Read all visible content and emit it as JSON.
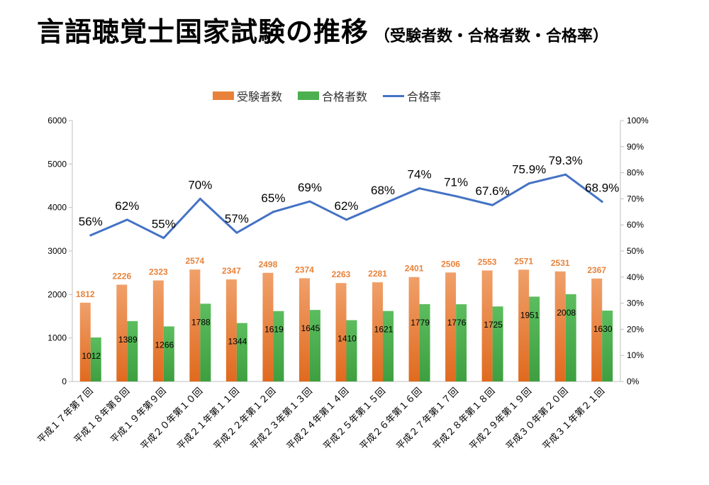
{
  "title": {
    "main": "言語聴覚士国家試験の推移",
    "sub": "（受験者数・合格者数・合格率）"
  },
  "colors": {
    "examinees": "#E8823A",
    "passers": "#4CAF50",
    "rate": "#4472C4",
    "axis": "#BFBFBF"
  },
  "chart_data": {
    "type": "bar",
    "title": "言語聴覚士国家試験の推移（受験者数・合格者数・合格率）",
    "categories": [
      "平成１７年第７回",
      "平成１８年第８回",
      "平成１９年第９回",
      "平成２０年第１０回",
      "平成２１年第１１回",
      "平成２２年第１２回",
      "平成２３年第１３回",
      "平成２４年第１４回",
      "平成２５年第１５回",
      "平成２６年第１６回",
      "平成２７年第１７回",
      "平成２８年第１８回",
      "平成２９年第１９回",
      "平成３０年第２０回",
      "平成３１年第２１回"
    ],
    "series": [
      {
        "name": "受験者数",
        "type": "bar",
        "values": [
          1812,
          2226,
          2323,
          2574,
          2347,
          2498,
          2374,
          2263,
          2281,
          2401,
          2506,
          2553,
          2571,
          2531,
          2367
        ]
      },
      {
        "name": "合格者数",
        "type": "bar",
        "values": [
          1012,
          1389,
          1266,
          1788,
          1344,
          1619,
          1645,
          1410,
          1621,
          1779,
          1776,
          1725,
          1951,
          2008,
          1630
        ]
      },
      {
        "name": "合格率",
        "type": "line",
        "axis": "right",
        "values": [
          56,
          62,
          55,
          70,
          57,
          65,
          69,
          62,
          68,
          74,
          71,
          67.6,
          75.9,
          79.3,
          68.9
        ],
        "labels": [
          "56%",
          "62%",
          "55%",
          "70%",
          "57%",
          "65%",
          "69%",
          "62%",
          "68%",
          "74%",
          "71%",
          "67.6%",
          "75.9%",
          "79.3%",
          "68.9%"
        ]
      }
    ],
    "ylim": [
      0,
      6000
    ],
    "yticks": [
      "0",
      "1000",
      "2000",
      "3000",
      "4000",
      "5000",
      "6000"
    ],
    "y2lim": [
      0,
      100
    ],
    "y2ticks": [
      "0%",
      "10%",
      "20%",
      "30%",
      "40%",
      "50%",
      "60%",
      "70%",
      "80%",
      "90%",
      "100%"
    ],
    "legend": "top-center"
  }
}
